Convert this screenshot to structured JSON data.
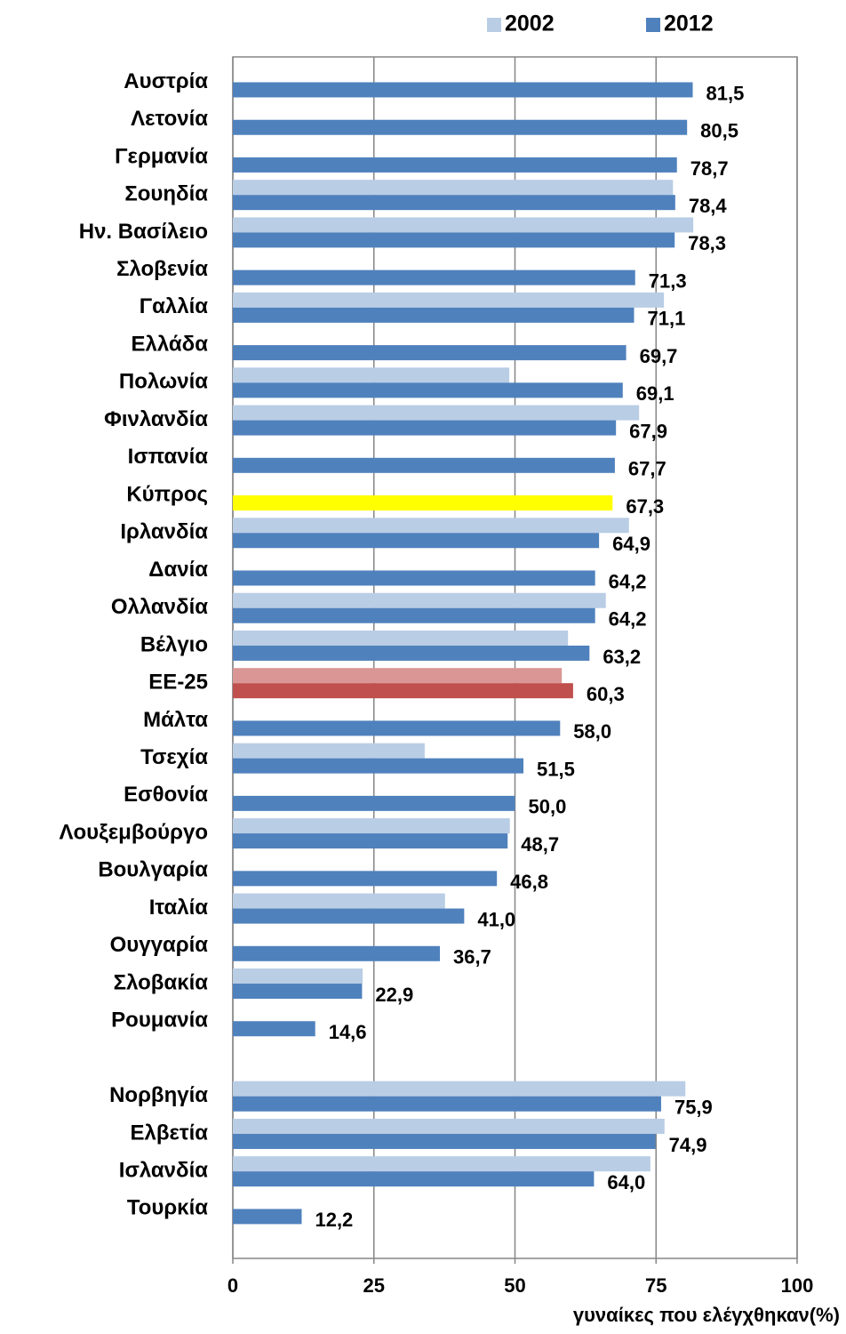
{
  "chart_data": {
    "type": "bar",
    "orientation": "horizontal",
    "categories": [
      "Αυστρία",
      "Λετονία",
      "Γερμανία",
      "Σουηδία",
      "Ην. Βασίλειο",
      "Σλοβενία",
      "Γαλλία",
      "Ελλάδα",
      "Πολωνία",
      "Φινλανδία",
      "Ισπανία",
      "Κύπρος",
      "Ιρλανδία",
      "Δανία",
      "Ολλανδία",
      "Βέλγιο",
      "ΕΕ-25",
      "Μάλτα",
      "Τσεχία",
      "Εσθονία",
      "Λουξεμβούργο",
      "Βουλγαρία",
      "Ιταλία",
      "Ουγγαρία",
      "Σλοβακία",
      "Ρουμανία",
      null,
      "Νορβηγία",
      "Ελβετία",
      "Ισλανδία",
      "Τουρκία"
    ],
    "series": [
      {
        "name": "2002",
        "color": "#b9cde5",
        "values": [
          null,
          null,
          null,
          78.0,
          81.6,
          null,
          76.4,
          null,
          49.0,
          72.0,
          null,
          null,
          70.2,
          null,
          66.1,
          59.4,
          58.3,
          null,
          34.0,
          null,
          49.1,
          null,
          37.6,
          null,
          23.0,
          null,
          null,
          80.2,
          76.5,
          74.0,
          null
        ],
        "point_colors": {
          "16": "#d99694"
        }
      },
      {
        "name": "2012",
        "color": "#4f81bd",
        "values": [
          81.5,
          80.5,
          78.7,
          78.4,
          78.3,
          71.3,
          71.1,
          69.7,
          69.1,
          67.9,
          67.7,
          67.3,
          64.9,
          64.2,
          64.2,
          63.2,
          60.3,
          58.0,
          51.5,
          50.0,
          48.7,
          46.8,
          41.0,
          36.7,
          22.9,
          14.6,
          null,
          75.9,
          74.9,
          64.0,
          12.2
        ],
        "value_labels": [
          "81,5",
          "80,5",
          "78,7",
          "78,4",
          "78,3",
          "71,3",
          "71,1",
          "69,7",
          "69,1",
          "67,9",
          "67,7",
          "67,3",
          "64,9",
          "64,2",
          "64,2",
          "63,2",
          "60,3",
          "58,0",
          "51,5",
          "50,0",
          "48,7",
          "46,8",
          "41,0",
          "36,7",
          "22,9",
          "14,6",
          null,
          "75,9",
          "74,9",
          "64,0",
          "12,2"
        ],
        "point_colors": {
          "11": "#ffff00",
          "16": "#c0504d"
        }
      }
    ],
    "xlim": [
      0,
      100
    ],
    "xticks": [
      0,
      25,
      50,
      75,
      100
    ],
    "grid": true,
    "legend": "top-right",
    "xlabel": "γυναίκες που ελέγχθηκαν(%)"
  }
}
